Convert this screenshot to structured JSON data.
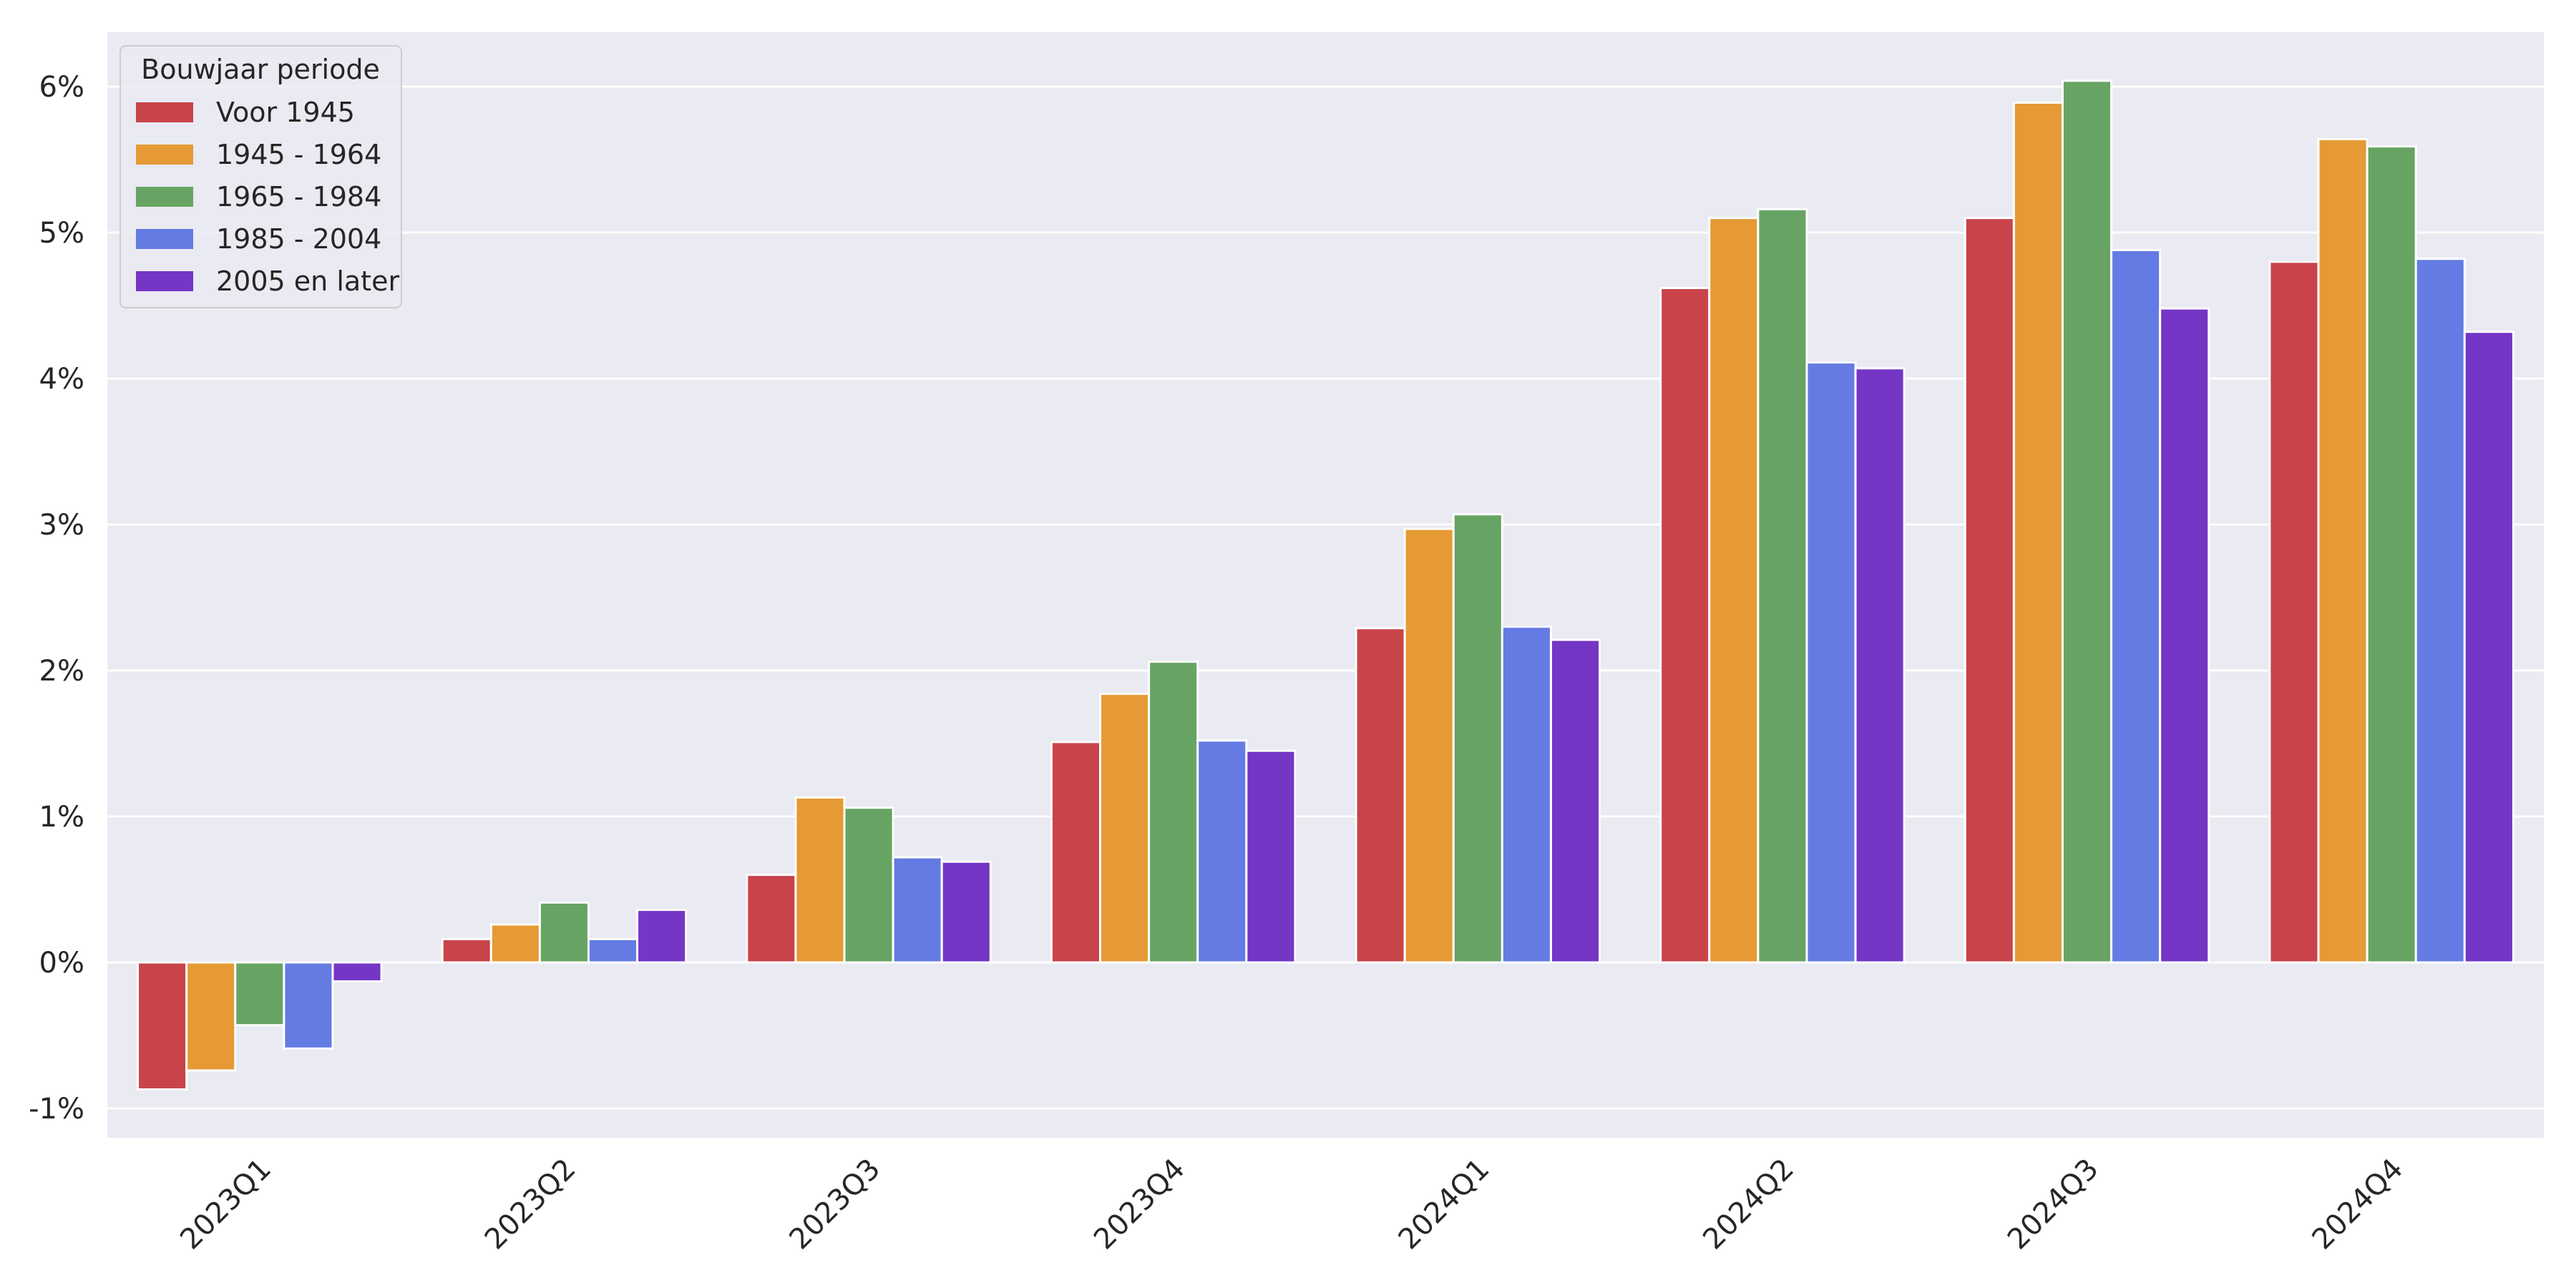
{
  "chart_data": {
    "type": "bar",
    "title": "",
    "xlabel": "",
    "ylabel": "",
    "categories": [
      "2023Q1",
      "2023Q2",
      "2023Q3",
      "2023Q4",
      "2024Q1",
      "2024Q2",
      "2024Q3",
      "2024Q4"
    ],
    "y_ticks": [
      -1,
      0,
      1,
      2,
      3,
      4,
      5,
      6
    ],
    "y_tick_labels": [
      "-1%",
      "0%",
      "1%",
      "2%",
      "3%",
      "4%",
      "5%",
      "6%"
    ],
    "ylim": [
      -1.2,
      6.4
    ],
    "y_unit": "%",
    "grid": true,
    "legend": {
      "title": "Bouwjaar periode",
      "position": "top-left"
    },
    "series": [
      {
        "name": "Voor 1945",
        "color": "#c8444a",
        "values": [
          -0.87,
          0.16,
          0.6,
          1.51,
          2.29,
          4.62,
          5.1,
          4.8
        ]
      },
      {
        "name": "1945 - 1964",
        "color": "#e59a35",
        "values": [
          -0.74,
          0.26,
          1.13,
          1.84,
          2.97,
          5.1,
          5.89,
          5.64
        ]
      },
      {
        "name": "1965 - 1984",
        "color": "#67a463",
        "values": [
          -0.43,
          0.41,
          1.06,
          2.06,
          3.07,
          5.16,
          6.04,
          5.59
        ]
      },
      {
        "name": "1985 - 2004",
        "color": "#647be3",
        "values": [
          -0.59,
          0.16,
          0.72,
          1.52,
          2.3,
          4.11,
          4.88,
          4.82
        ]
      },
      {
        "name": "2005 en later",
        "color": "#7535c5",
        "values": [
          -0.13,
          0.36,
          0.69,
          1.45,
          2.21,
          4.07,
          4.48,
          4.32
        ]
      }
    ]
  }
}
